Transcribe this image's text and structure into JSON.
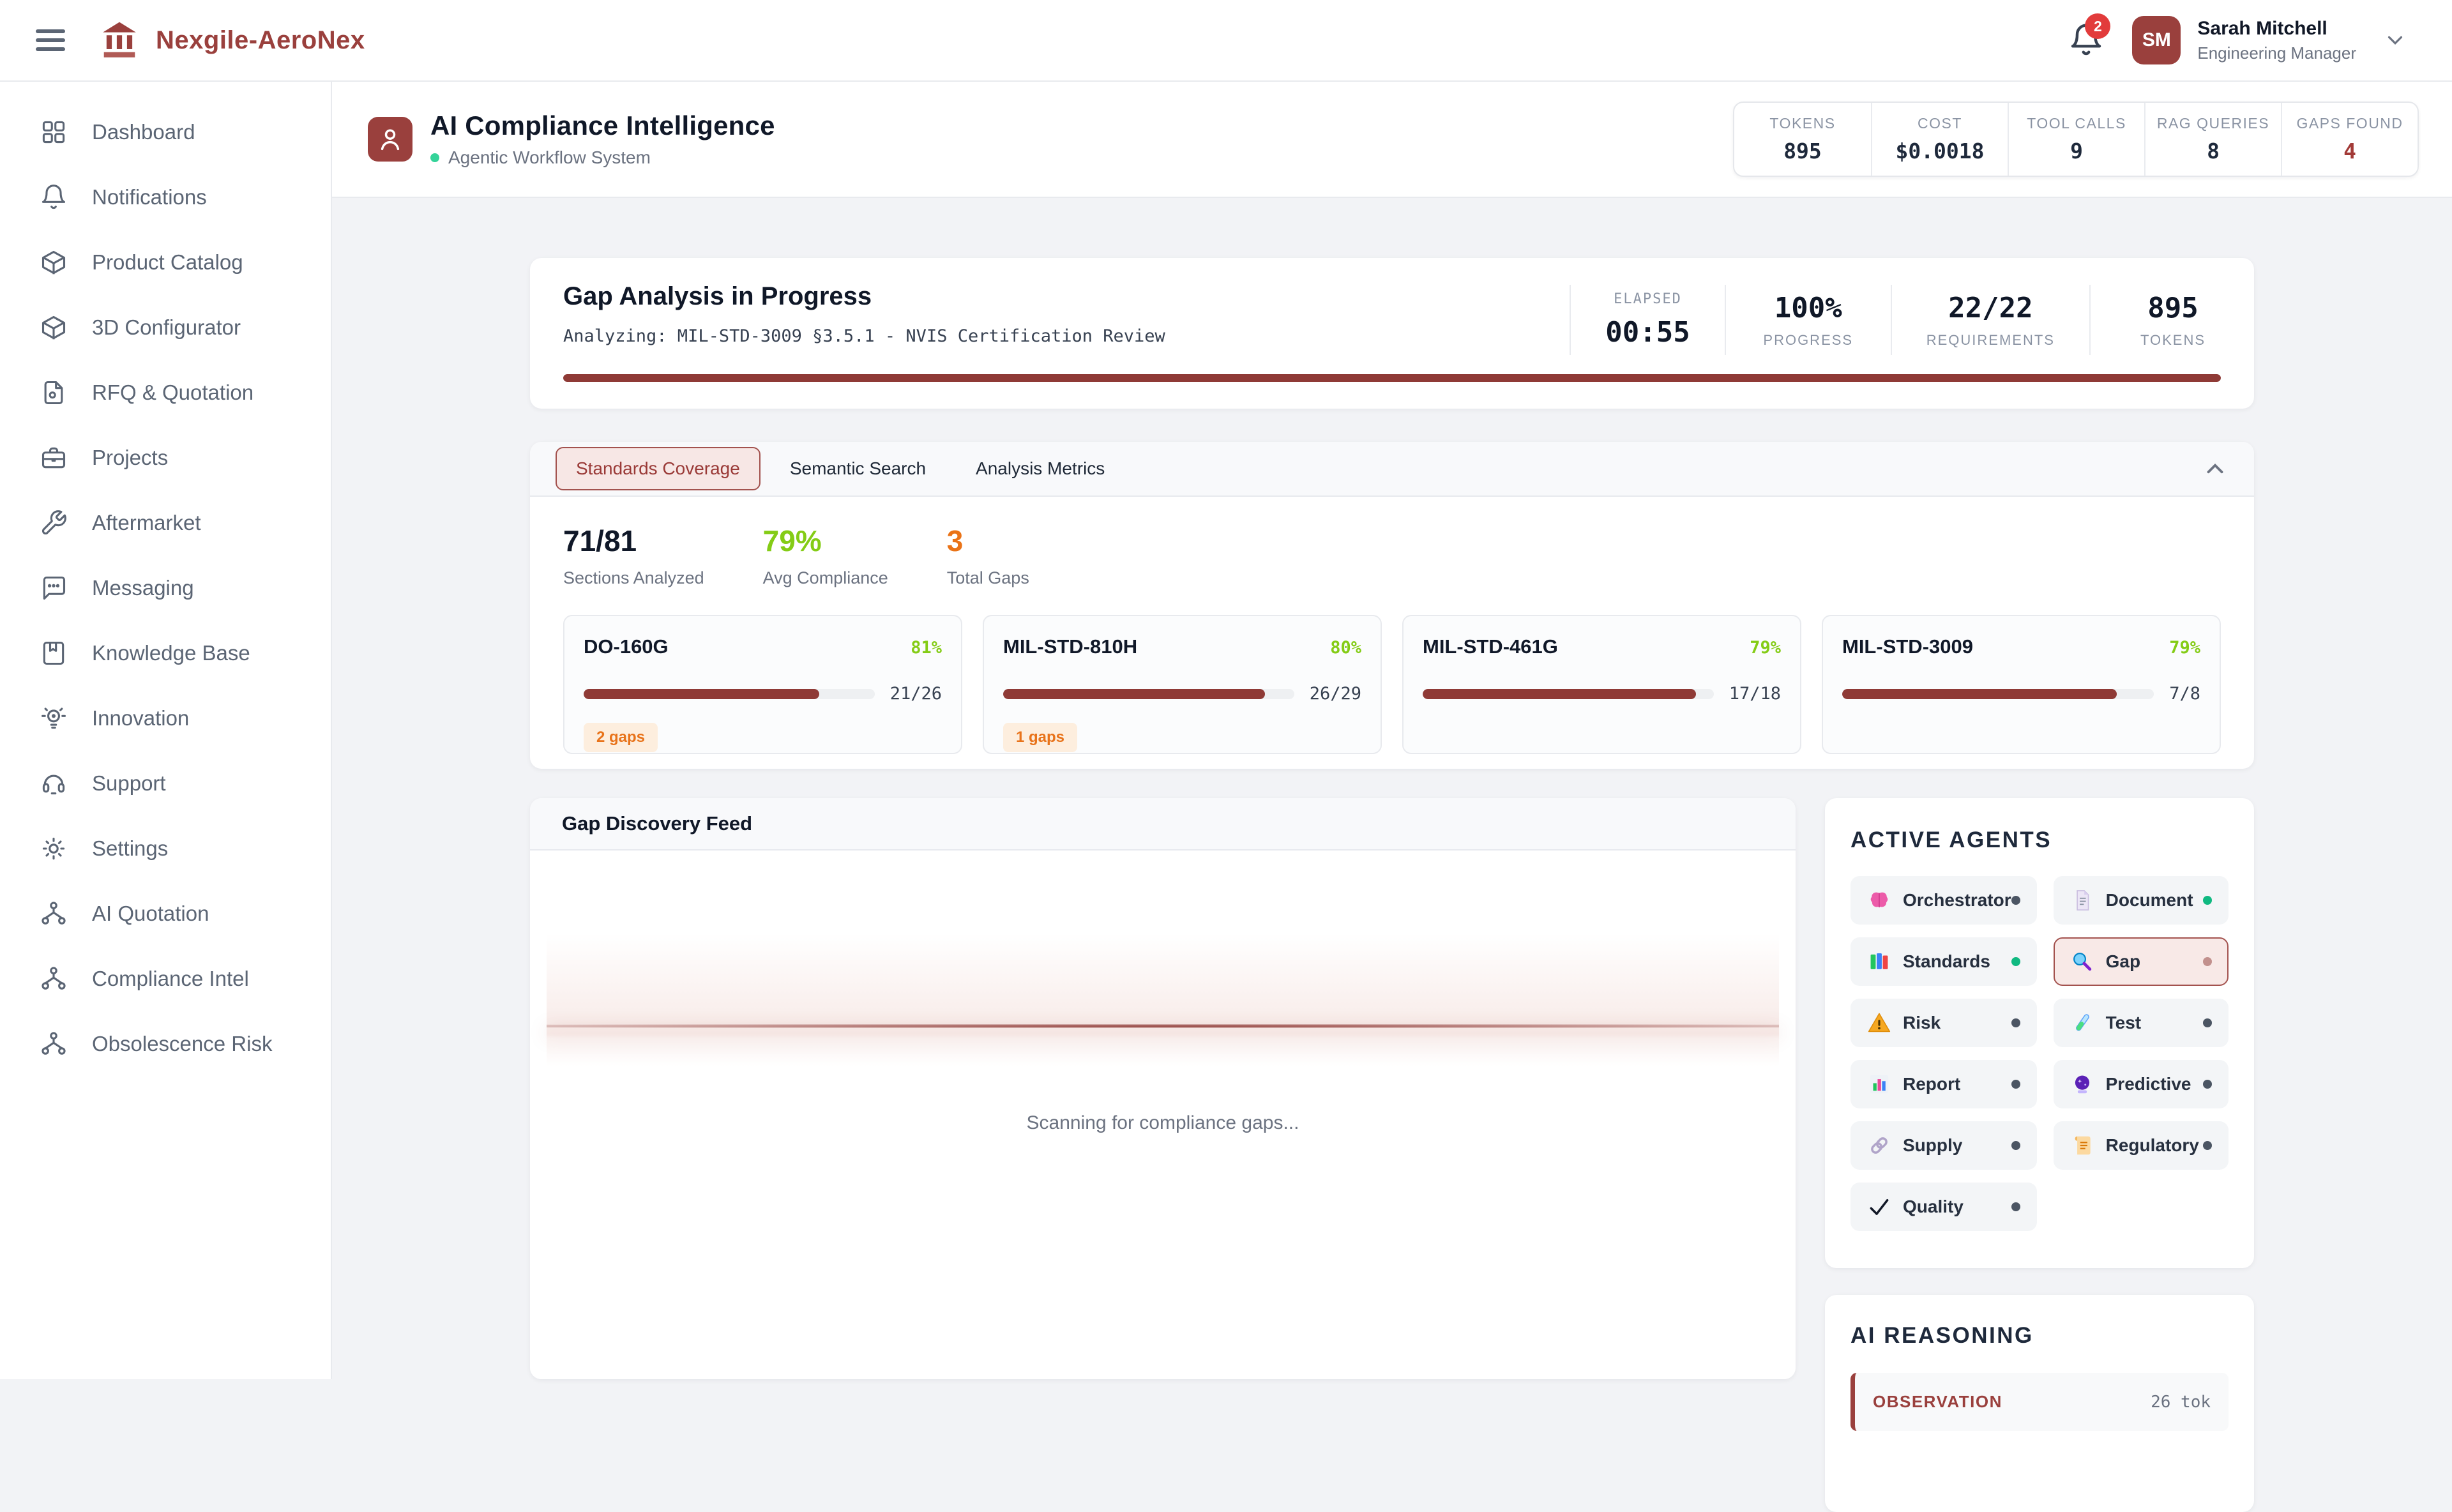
{
  "colors": {
    "brand_red": "#9a403d",
    "progress_red": "#8f3a36",
    "lime_green": "#84cc16",
    "orange": "#ea7317",
    "status_green": "#10b981",
    "badge_red": "#e23b3b"
  },
  "navbar": {
    "brand": "Nexgile-AeroNex",
    "notification_count": "2",
    "avatar_initials": "SM",
    "user_name": "Sarah Mitchell",
    "user_role": "Engineering Manager"
  },
  "sidebar": {
    "items": [
      {
        "label": "Dashboard",
        "icon": "dashboard"
      },
      {
        "label": "Notifications",
        "icon": "bell"
      },
      {
        "label": "Product Catalog",
        "icon": "package"
      },
      {
        "label": "3D Configurator",
        "icon": "cube"
      },
      {
        "label": "RFQ & Quotation",
        "icon": "file"
      },
      {
        "label": "Projects",
        "icon": "briefcase"
      },
      {
        "label": "Aftermarket",
        "icon": "wrench"
      },
      {
        "label": "Messaging",
        "icon": "message"
      },
      {
        "label": "Knowledge Base",
        "icon": "book"
      },
      {
        "label": "Innovation",
        "icon": "lightbulb"
      },
      {
        "label": "Support",
        "icon": "headset"
      },
      {
        "label": "Settings",
        "icon": "gear"
      },
      {
        "label": "AI Quotation",
        "icon": "workflow"
      },
      {
        "label": "Compliance Intel",
        "icon": "workflow"
      },
      {
        "label": "Obsolescence Risk",
        "icon": "workflow"
      }
    ]
  },
  "page_header": {
    "title": "AI Compliance Intelligence",
    "subtitle": "Agentic Workflow System",
    "stats": [
      {
        "label": "TOKENS",
        "value": "895"
      },
      {
        "label": "COST",
        "value": "$0.0018"
      },
      {
        "label": "TOOL CALLS",
        "value": "9"
      },
      {
        "label": "RAG QUERIES",
        "value": "8"
      },
      {
        "label": "GAPS FOUND",
        "value": "4",
        "accent": "red"
      }
    ]
  },
  "analysis": {
    "title": "Gap Analysis in Progress",
    "subtitle": "Analyzing: MIL-STD-3009 §3.5.1 - NVIS Certification Review",
    "elapsed_label": "ELAPSED",
    "elapsed_value": "00:55",
    "metrics": [
      {
        "value": "100%",
        "label": "PROGRESS"
      },
      {
        "value": "22/22",
        "label": "REQUIREMENTS"
      },
      {
        "value": "895",
        "label": "TOKENS"
      }
    ],
    "progress_pct": 100
  },
  "tabs": [
    {
      "label": "Standards Coverage",
      "active": "true"
    },
    {
      "label": "Semantic Search"
    },
    {
      "label": "Analysis Metrics"
    }
  ],
  "coverage": {
    "summary": [
      {
        "value": "71/81",
        "label": "Sections Analyzed",
        "color": "dark"
      },
      {
        "value": "79%",
        "label": "Avg Compliance",
        "color": "green"
      },
      {
        "value": "3",
        "label": "Total Gaps",
        "color": "orange"
      }
    ],
    "standards": [
      {
        "name": "DO-160G",
        "pct": "81%",
        "count": "21/26",
        "fill": 81,
        "gaps": "2 gaps"
      },
      {
        "name": "MIL-STD-810H",
        "pct": "80%",
        "count": "26/29",
        "fill": 90,
        "gaps": "1 gaps"
      },
      {
        "name": "MIL-STD-461G",
        "pct": "79%",
        "count": "17/18",
        "fill": 94
      },
      {
        "name": "MIL-STD-3009",
        "pct": "79%",
        "count": "7/8",
        "fill": 88
      }
    ]
  },
  "feed": {
    "title": "Gap Discovery Feed",
    "status_text": "Scanning for compliance gaps..."
  },
  "agents": {
    "title": "ACTIVE AGENTS",
    "items": [
      {
        "name": "Orchestrator",
        "icon": "brain",
        "status": "idle"
      },
      {
        "name": "Document",
        "icon": "document",
        "status": "active"
      },
      {
        "name": "Standards",
        "icon": "books",
        "status": "active"
      },
      {
        "name": "Gap",
        "icon": "magnifier",
        "status": "busy",
        "selected": "true"
      },
      {
        "name": "Risk",
        "icon": "warning",
        "status": "idle"
      },
      {
        "name": "Test",
        "icon": "test-tube",
        "status": "idle"
      },
      {
        "name": "Report",
        "icon": "bar-chart",
        "status": "idle"
      },
      {
        "name": "Predictive",
        "icon": "crystal-ball",
        "status": "idle"
      },
      {
        "name": "Supply",
        "icon": "chain-link",
        "status": "idle"
      },
      {
        "name": "Regulatory",
        "icon": "scroll",
        "status": "idle"
      },
      {
        "name": "Quality",
        "icon": "checkmark",
        "status": "idle"
      }
    ]
  },
  "reasoning": {
    "title": "AI REASONING",
    "entries": [
      {
        "type": "OBSERVATION",
        "tokens": "26 tok"
      }
    ]
  }
}
